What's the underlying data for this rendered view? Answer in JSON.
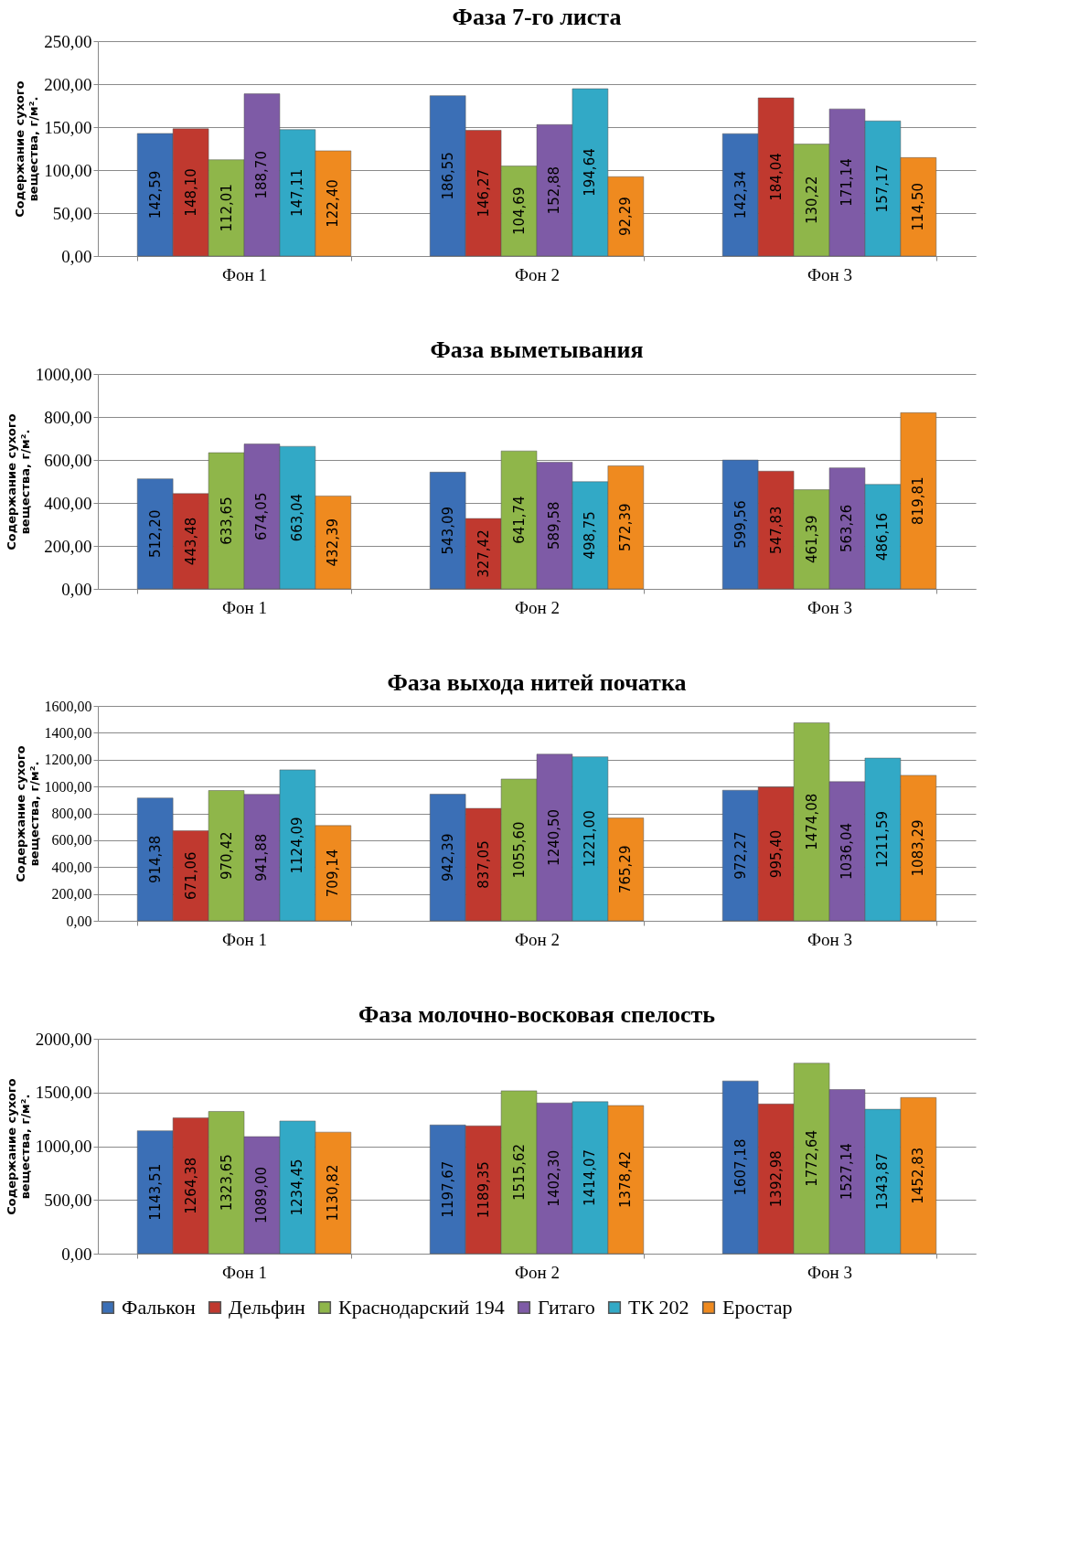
{
  "chart_data": [
    {
      "type": "bar",
      "title": "Фаза 7-го листа",
      "ylabel": "Содержание сухого вещества, г/м².",
      "categories": [
        "Фон 1",
        "Фон 2",
        "Фон 3"
      ],
      "series": [
        {
          "name": "Фалькон",
          "color": "#3b6fb6",
          "values": [
            142.59,
            186.55,
            142.34
          ],
          "value_labels": [
            "142,59",
            "186,55",
            "142,34"
          ]
        },
        {
          "name": "Дельфин",
          "color": "#c0392f",
          "values": [
            148.1,
            146.27,
            184.04
          ],
          "value_labels": [
            "148,10",
            "146,27",
            "184,04"
          ]
        },
        {
          "name": "Краснодарский 194",
          "color": "#8fb64a",
          "values": [
            112.01,
            104.69,
            130.22
          ],
          "value_labels": [
            "112,01",
            "104,69",
            "130,22"
          ]
        },
        {
          "name": "Гитаго",
          "color": "#7e5ba6",
          "values": [
            188.7,
            152.88,
            171.14
          ],
          "value_labels": [
            "188,70",
            "152,88",
            "171,14"
          ]
        },
        {
          "name": "ТК 202",
          "color": "#32a9c6",
          "values": [
            147.11,
            194.64,
            157.17
          ],
          "value_labels": [
            "147,11",
            "194,64",
            "157,17"
          ]
        },
        {
          "name": "Еростар",
          "color": "#ef8a1f",
          "values": [
            122.4,
            92.29,
            114.5
          ],
          "value_labels": [
            "122,40",
            "92,29",
            "114,50"
          ]
        }
      ],
      "ylim": [
        0,
        250
      ],
      "yticks": [
        {
          "value": 0,
          "label": "0,00"
        },
        {
          "value": 50,
          "label": "50,00"
        },
        {
          "value": 100,
          "label": "100,00"
        },
        {
          "value": 150,
          "label": "150,00"
        },
        {
          "value": 200,
          "label": "200,00"
        },
        {
          "value": 250,
          "label": "250,00"
        }
      ],
      "grid": "y",
      "legend": "bottom"
    },
    {
      "type": "bar",
      "title": "Фаза выметывания",
      "ylabel": "Содержание сухого вещества, г/м².",
      "categories": [
        "Фон 1",
        "Фон 2",
        "Фон 3"
      ],
      "series": [
        {
          "name": "Фалькон",
          "color": "#3b6fb6",
          "values": [
            512.2,
            543.09,
            599.56
          ],
          "value_labels": [
            "512,20",
            "543,09",
            "599,56"
          ]
        },
        {
          "name": "Дельфин",
          "color": "#c0392f",
          "values": [
            443.48,
            327.42,
            547.83
          ],
          "value_labels": [
            "443,48",
            "327,42",
            "547,83"
          ]
        },
        {
          "name": "Краснодарский 194",
          "color": "#8fb64a",
          "values": [
            633.65,
            641.74,
            461.39
          ],
          "value_labels": [
            "633,65",
            "641,74",
            "461,39"
          ]
        },
        {
          "name": "Гитаго",
          "color": "#7e5ba6",
          "values": [
            674.05,
            589.58,
            563.26
          ],
          "value_labels": [
            "674,05",
            "589,58",
            "563,26"
          ]
        },
        {
          "name": "ТК 202",
          "color": "#32a9c6",
          "values": [
            663.04,
            498.75,
            486.16
          ],
          "value_labels": [
            "663,04",
            "498,75",
            "486,16"
          ]
        },
        {
          "name": "Еростар",
          "color": "#ef8a1f",
          "values": [
            432.39,
            572.39,
            819.81
          ],
          "value_labels": [
            "432,39",
            "572,39",
            "819,81"
          ]
        }
      ],
      "ylim": [
        0,
        1000
      ],
      "yticks": [
        {
          "value": 0,
          "label": "0,00"
        },
        {
          "value": 200,
          "label": "200,00"
        },
        {
          "value": 400,
          "label": "400,00"
        },
        {
          "value": 600,
          "label": "600,00"
        },
        {
          "value": 800,
          "label": "800,00"
        },
        {
          "value": 1000,
          "label": "1000,00"
        }
      ],
      "grid": "y",
      "legend": "bottom"
    },
    {
      "type": "bar",
      "title": "Фаза выхода нитей початка",
      "ylabel": "Содержание сухого вещества, г/м².",
      "categories": [
        "Фон 1",
        "Фон 2",
        "Фон 3"
      ],
      "series": [
        {
          "name": "Фалькон",
          "color": "#3b6fb6",
          "values": [
            914.38,
            942.39,
            972.27
          ],
          "value_labels": [
            "914,38",
            "942,39",
            "972,27"
          ]
        },
        {
          "name": "Дельфин",
          "color": "#c0392f",
          "values": [
            671.06,
            837.05,
            995.4
          ],
          "value_labels": [
            "671,06",
            "837,05",
            "995,40"
          ]
        },
        {
          "name": "Краснодарский 194",
          "color": "#8fb64a",
          "values": [
            970.42,
            1055.6,
            1474.08
          ],
          "value_labels": [
            "970,42",
            "1055,60",
            "1474,08"
          ]
        },
        {
          "name": "Гитаго",
          "color": "#7e5ba6",
          "values": [
            941.88,
            1240.5,
            1036.04
          ],
          "value_labels": [
            "941,88",
            "1240,50",
            "1036,04"
          ]
        },
        {
          "name": "ТК 202",
          "color": "#32a9c6",
          "values": [
            1124.09,
            1221.0,
            1211.59
          ],
          "value_labels": [
            "1124,09",
            "1221,00",
            "1211,59"
          ]
        },
        {
          "name": "Еростар",
          "color": "#ef8a1f",
          "values": [
            709.14,
            765.29,
            1083.29
          ],
          "value_labels": [
            "709,14",
            "765,29",
            "1083,29"
          ]
        }
      ],
      "ylim": [
        0,
        1600
      ],
      "yticks": [
        {
          "value": 0,
          "label": "0,00"
        },
        {
          "value": 200,
          "label": "200,00"
        },
        {
          "value": 400,
          "label": "400,00"
        },
        {
          "value": 600,
          "label": "600,00"
        },
        {
          "value": 800,
          "label": "800,00"
        },
        {
          "value": 1000,
          "label": "1000,00"
        },
        {
          "value": 1200,
          "label": "1200,00"
        },
        {
          "value": 1400,
          "label": "1400,00"
        },
        {
          "value": 1600,
          "label": "1600,00"
        }
      ],
      "grid": "y",
      "legend": "bottom"
    },
    {
      "type": "bar",
      "title": "Фаза молочно-восковая спелость",
      "ylabel": "Содержание сухого вещества, г/м².",
      "categories": [
        "Фон 1",
        "Фон 2",
        "Фон 3"
      ],
      "series": [
        {
          "name": "Фалькон",
          "color": "#3b6fb6",
          "values": [
            1143.51,
            1197.67,
            1607.18
          ],
          "value_labels": [
            "1143,51",
            "1197,67",
            "1607,18"
          ]
        },
        {
          "name": "Дельфин",
          "color": "#c0392f",
          "values": [
            1264.38,
            1189.35,
            1392.98
          ],
          "value_labels": [
            "1264,38",
            "1189,35",
            "1392,98"
          ]
        },
        {
          "name": "Краснодарский 194",
          "color": "#8fb64a",
          "values": [
            1323.65,
            1515.62,
            1772.64
          ],
          "value_labels": [
            "1323,65",
            "1515,62",
            "1772,64"
          ]
        },
        {
          "name": "Гитаго",
          "color": "#7e5ba6",
          "values": [
            1089.0,
            1402.3,
            1527.14
          ],
          "value_labels": [
            "1089,00",
            "1402,30",
            "1527,14"
          ]
        },
        {
          "name": "ТК 202",
          "color": "#32a9c6",
          "values": [
            1234.45,
            1414.07,
            1343.87
          ],
          "value_labels": [
            "1234,45",
            "1414,07",
            "1343,87"
          ]
        },
        {
          "name": "Еростар",
          "color": "#ef8a1f",
          "values": [
            1130.82,
            1378.42,
            1452.83
          ],
          "value_labels": [
            "1130,82",
            "1378,42",
            "1452,83"
          ]
        }
      ],
      "ylim": [
        0,
        2000
      ],
      "yticks": [
        {
          "value": 0,
          "label": "0,00"
        },
        {
          "value": 500,
          "label": "500,00"
        },
        {
          "value": 1000,
          "label": "1000,00"
        },
        {
          "value": 1500,
          "label": "1500,00"
        },
        {
          "value": 2000,
          "label": "2000,00"
        }
      ],
      "grid": "y",
      "legend": "bottom"
    }
  ]
}
